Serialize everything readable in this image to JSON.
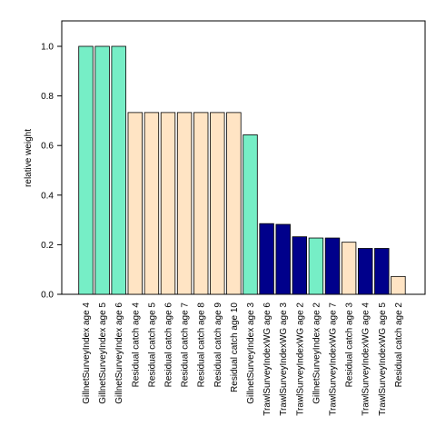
{
  "chart_data": {
    "type": "bar",
    "title": "",
    "xlabel": "",
    "ylabel": "relative weight",
    "ylim": [
      0,
      1.1
    ],
    "yticks": [
      0.0,
      0.2,
      0.4,
      0.6,
      0.8,
      1.0
    ],
    "ytick_labels": [
      "0.0",
      "0.2",
      "0.4",
      "0.6",
      "0.8",
      "1.0"
    ],
    "grid": false,
    "categories": [
      "GillnetSurveyIndex age 4",
      "GillnetSurveyIndex age 5",
      "GillnetSurveyIndex age 6",
      "Residual catch age 4",
      "Residual catch age 5",
      "Residual catch age 6",
      "Residual catch age 7",
      "Residual catch age 8",
      "Residual catch age 9",
      "Residual catch age 10",
      "GillnetSurveyIndex age 3",
      "TrawlSurveyIndexWG age 6",
      "TrawlSurveyIndexWG age 3",
      "TrawlSurveyIndexWG age 2",
      "GillnetSurveyIndex age 2",
      "TrawlSurveyIndexWG age 7",
      "Residual catch age 3",
      "TrawlSurveyIndexWG age 4",
      "TrawlSurveyIndexWG age 5",
      "Residual catch age 2"
    ],
    "values": [
      1.0,
      1.0,
      1.0,
      0.733,
      0.733,
      0.733,
      0.733,
      0.733,
      0.733,
      0.733,
      0.643,
      0.285,
      0.282,
      0.232,
      0.227,
      0.227,
      0.21,
      0.185,
      0.185,
      0.072
    ],
    "bar_colors": [
      "#76eec6",
      "#76eec6",
      "#76eec6",
      "#ffe4c4",
      "#ffe4c4",
      "#ffe4c4",
      "#ffe4c4",
      "#ffe4c4",
      "#ffe4c4",
      "#ffe4c4",
      "#76eec6",
      "#00008b",
      "#00008b",
      "#00008b",
      "#76eec6",
      "#00008b",
      "#ffe4c4",
      "#00008b",
      "#00008b",
      "#ffe4c4"
    ]
  }
}
